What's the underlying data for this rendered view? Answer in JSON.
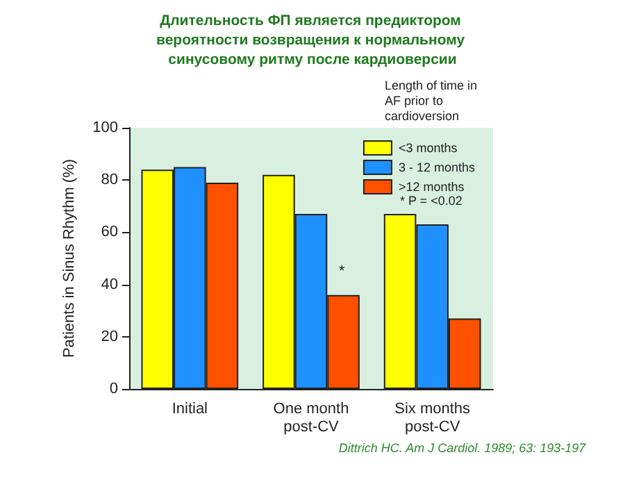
{
  "chart_data": {
    "type": "bar",
    "title": "Длительность ФП является предиктором вероятности возвращения к нормальному синусовому ритму после кардиоверсии",
    "ylabel": "Patients in Sinus Rhythm (%)",
    "legend_title": "Length of time in AF prior to cardioversion",
    "categories": [
      "Initial",
      "One month\npost-CV",
      "Six months\npost-CV"
    ],
    "series": [
      {
        "name": "<3 months",
        "color": "#ffff00",
        "values": [
          84,
          82,
          67
        ]
      },
      {
        "name": "3 - 12 months",
        "color": "#1e90ff",
        "values": [
          85,
          67,
          63
        ]
      },
      {
        "name": ">12 months",
        "color": "#ff5000",
        "values": [
          79,
          36,
          27
        ]
      }
    ],
    "ylim": [
      0,
      100
    ],
    "yticks": [
      0,
      20,
      40,
      60,
      80,
      100
    ],
    "grid": false,
    "legend": "top right",
    "annotations": [
      "*",
      "* P = <0.02",
      "Dittrich HC. Am J Cardiol. 1989; 63: 193-197"
    ]
  }
}
